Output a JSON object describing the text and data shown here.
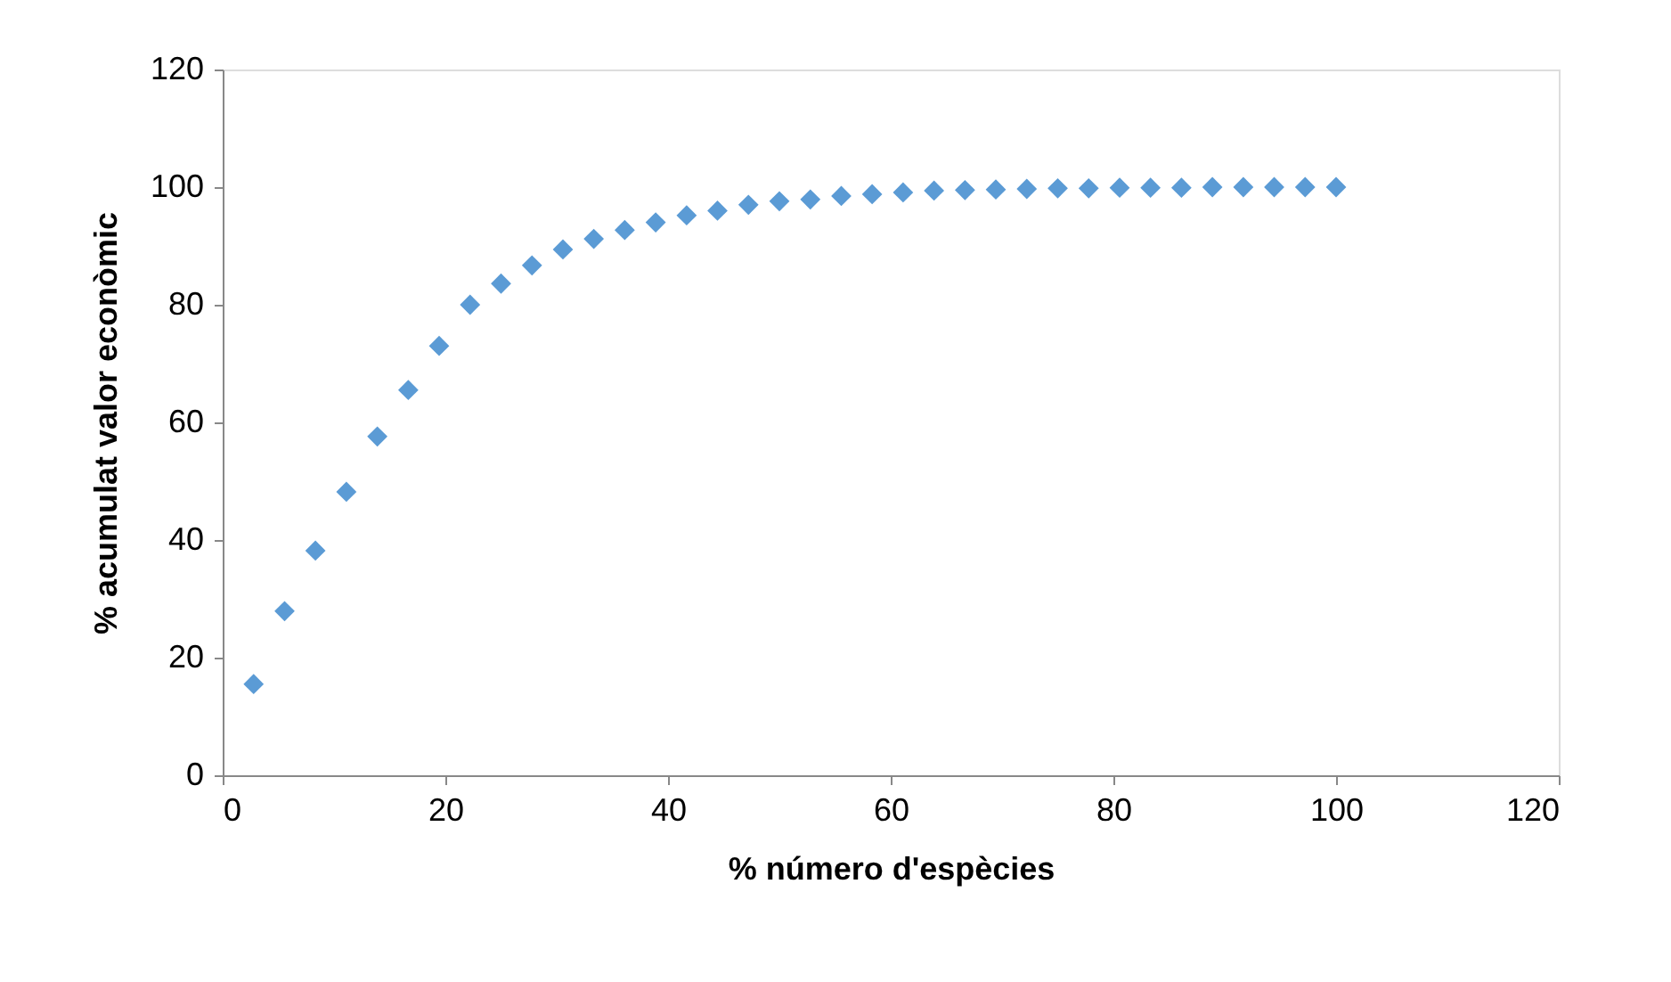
{
  "chart_data": {
    "type": "scatter",
    "xlabel": "% número d'espècies",
    "ylabel": "% acumulat valor econòmic",
    "x": [
      2.78,
      5.56,
      8.33,
      11.11,
      13.89,
      16.67,
      19.44,
      22.22,
      25,
      27.78,
      30.56,
      33.33,
      36.11,
      38.89,
      41.67,
      44.44,
      47.22,
      50,
      52.78,
      55.56,
      58.33,
      61.11,
      63.89,
      66.67,
      69.44,
      72.22,
      75,
      77.78,
      80.56,
      83.33,
      86.11,
      88.89,
      91.67,
      94.44,
      97.22,
      100
    ],
    "series": [
      {
        "color": "#5b9bd5",
        "values": [
          15.5,
          27.9,
          38.2,
          48.2,
          57.6,
          65.5,
          73,
          80,
          83.6,
          86.7,
          89.4,
          91.2,
          92.7,
          94,
          95.2,
          96,
          97,
          97.6,
          97.9,
          98.5,
          98.8,
          99.1,
          99.4,
          99.5,
          99.6,
          99.7,
          99.8,
          99.8,
          99.9,
          99.9,
          99.9,
          100,
          100,
          100,
          100,
          100
        ]
      }
    ],
    "xlim": [
      0,
      120
    ],
    "xticks": [
      0,
      20,
      40,
      60,
      80,
      100,
      120
    ],
    "ylim": [
      0,
      120
    ],
    "yticks": [
      0,
      20,
      40,
      60,
      80,
      100,
      120
    ],
    "grid": false,
    "marker": "diamond"
  }
}
